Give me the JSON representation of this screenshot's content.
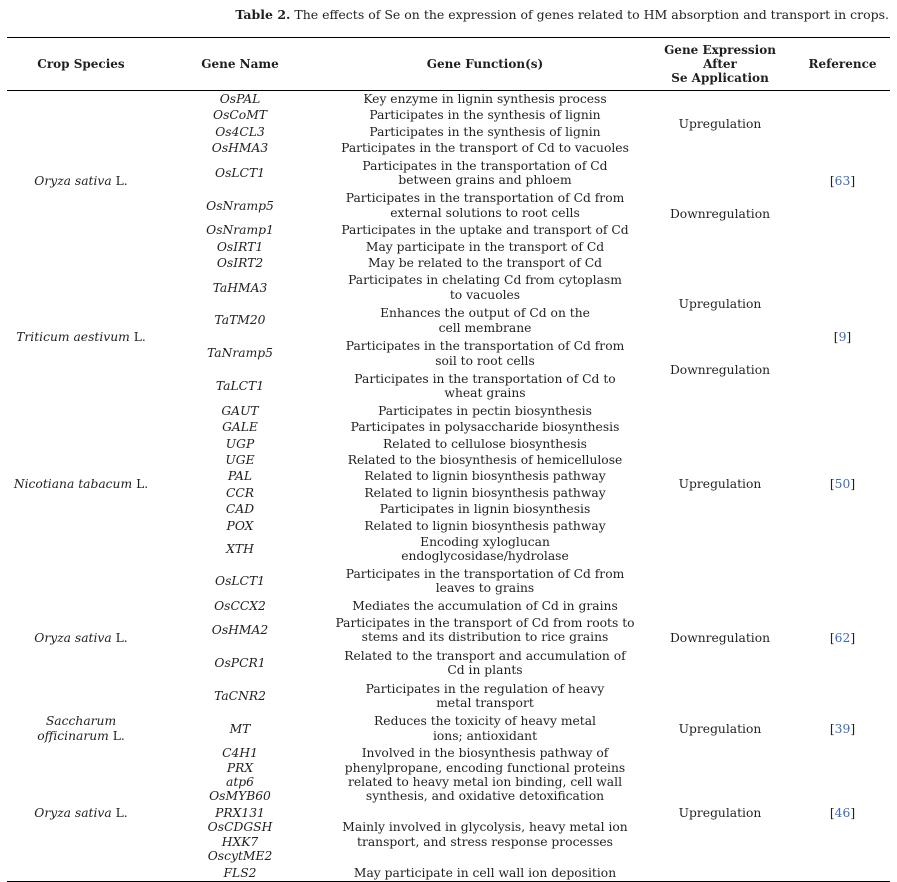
{
  "caption": {
    "label": "Table 2.",
    "text": "The effects of Se on the expression of genes related to HM absorption and transport in crops."
  },
  "colors": {
    "reference_blue": "#3a6bc5",
    "text": "#1f1f1f",
    "rule": "#000000"
  },
  "table": {
    "headers": [
      "Crop Species",
      "Gene Name",
      "Gene Function(s)",
      "Gene Expression After\nSe Application",
      "Reference"
    ],
    "groups": [
      {
        "species": {
          "name": "Oryza sativa",
          "authority": "L."
        },
        "reference": "63",
        "rows": [
          {
            "genes": [
              "OsPAL"
            ],
            "function": "Key enzyme in lignin synthesis process"
          },
          {
            "genes": [
              "OsCoMT"
            ],
            "function": "Participates in the synthesis of lignin"
          },
          {
            "genes": [
              "Os4CL3"
            ],
            "function": "Participates in the synthesis of lignin"
          },
          {
            "genes": [
              "OsHMA3"
            ],
            "function": "Participates in the transport of Cd to vacuoles"
          },
          {
            "genes": [
              "OsLCT1"
            ],
            "function": "Participates in the transportation of Cd\nbetween grains and phloem",
            "pad": true
          },
          {
            "genes": [
              "OsNramp5"
            ],
            "function": "Participates in the transportation of Cd from\nexternal solutions to root cells",
            "pad": true
          },
          {
            "genes": [
              "OsNramp1"
            ],
            "function": "Participates in the uptake and transport of Cd"
          },
          {
            "genes": [
              "OsIRT1"
            ],
            "function": "May participate in the transport of Cd"
          },
          {
            "genes": [
              "OsIRT2"
            ],
            "function": "May be related to the transport of Cd"
          }
        ],
        "expressions": [
          {
            "label": "Upregulation",
            "row_start": 0,
            "row_span": 4
          },
          {
            "label": "Downregulation",
            "row_start": 4,
            "row_span": 5
          }
        ]
      },
      {
        "species": {
          "name": "Triticum aestivum",
          "authority": "L."
        },
        "reference": "9",
        "rows": [
          {
            "genes": [
              "TaHMA3"
            ],
            "function": "Participates in chelating Cd from cytoplasm\nto vacuoles",
            "pad": true
          },
          {
            "genes": [
              "TaTM20"
            ],
            "function": "Enhances the output of Cd on the\ncell membrane",
            "pad": true
          },
          {
            "genes": [
              "TaNramp5"
            ],
            "function": "Participates in the transportation of Cd from\nsoil to root cells",
            "pad": true
          },
          {
            "genes": [
              "TaLCT1"
            ],
            "function": "Participates in the transportation of Cd to\nwheat grains",
            "pad": true
          }
        ],
        "expressions": [
          {
            "label": "Upregulation",
            "row_start": 0,
            "row_span": 2
          },
          {
            "label": "Downregulation",
            "row_start": 2,
            "row_span": 2
          }
        ]
      },
      {
        "species": {
          "name": "Nicotiana tabacum",
          "authority": "L."
        },
        "reference": "50",
        "rows": [
          {
            "genes": [
              "GAUT"
            ],
            "function": "Participates in pectin biosynthesis"
          },
          {
            "genes": [
              "GALE"
            ],
            "function": "Participates in polysaccharide biosynthesis"
          },
          {
            "genes": [
              "UGP"
            ],
            "function": "Related to cellulose biosynthesis"
          },
          {
            "genes": [
              "UGE"
            ],
            "function": "Related to the biosynthesis of hemicellulose"
          },
          {
            "genes": [
              "PAL"
            ],
            "function": "Related to lignin biosynthesis pathway"
          },
          {
            "genes": [
              "CCR"
            ],
            "function": "Related to lignin biosynthesis pathway"
          },
          {
            "genes": [
              "CAD"
            ],
            "function": "Participates in lignin biosynthesis"
          },
          {
            "genes": [
              "POX"
            ],
            "function": "Related to lignin biosynthesis pathway"
          },
          {
            "genes": [
              "XTH"
            ],
            "function": "Encoding xyloglucan\nendoglycosidase/hydrolase"
          }
        ],
        "expressions": [
          {
            "label": "Upregulation",
            "row_start": 0,
            "row_span": 9
          }
        ]
      },
      {
        "species": {
          "name": "Oryza sativa",
          "authority": "L."
        },
        "reference": "62",
        "rows": [
          {
            "genes": [
              "OsLCT1"
            ],
            "function": "Participates in the transportation of Cd from\nleaves to grains",
            "pad": true
          },
          {
            "genes": [
              "OsCCX2"
            ],
            "function": "Mediates the accumulation of Cd in grains"
          },
          {
            "genes": [
              "OsHMA2"
            ],
            "function": "Participates in the transport of Cd from roots to\nstems and its distribution to rice grains",
            "pad": true
          },
          {
            "genes": [
              "OsPCR1"
            ],
            "function": "Related to the transport and accumulation of\nCd in plants",
            "pad": true
          },
          {
            "genes": [
              "TaCNR2"
            ],
            "function": "Participates in the regulation of heavy\nmetal transport",
            "pad": true
          }
        ],
        "expressions": [
          {
            "label": "Downregulation",
            "row_start": 0,
            "row_span": 5
          }
        ]
      },
      {
        "species": {
          "name": "Saccharum officinarum",
          "authority": "L."
        },
        "reference": "39",
        "rows": [
          {
            "genes": [
              "MT"
            ],
            "function": "Reduces the toxicity of heavy metal\nions; antioxidant",
            "pad": true
          }
        ],
        "expressions": [
          {
            "label": "Upregulation",
            "row_start": 0,
            "row_span": 1
          }
        ]
      },
      {
        "species": {
          "name": "Oryza sativa",
          "authority": "L."
        },
        "reference": "46",
        "rows": [
          {
            "genes": [
              "C4H1",
              "PRX",
              "atp6",
              "OsMYB60"
            ],
            "function": "Involved in the biosynthesis pathway of\nphenylpropane, encoding functional proteins\nrelated to heavy metal ion binding, cell wall\nsynthesis, and oxidative detoxification"
          },
          {
            "genes": [
              "PRX131",
              "OsCDGSH",
              "HXK7",
              "OscytME2"
            ],
            "function": "Mainly involved in glycolysis, heavy metal ion\ntransport, and stress response processes"
          },
          {
            "genes": [
              "FLS2"
            ],
            "function": "May participate in cell wall ion deposition"
          }
        ],
        "expressions": [
          {
            "label": "Upregulation",
            "row_start": 0,
            "row_span": 3
          }
        ]
      }
    ]
  }
}
